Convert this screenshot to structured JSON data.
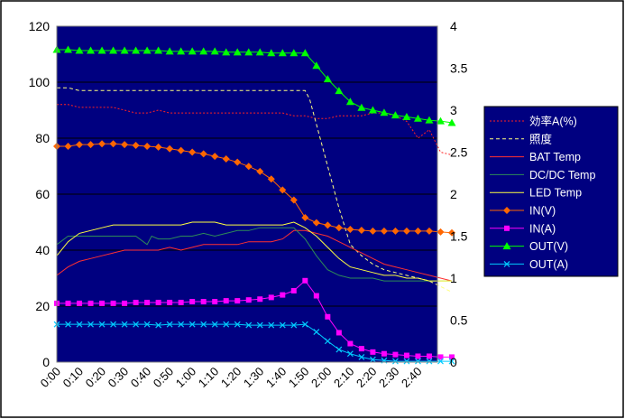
{
  "chart_data": {
    "type": "line",
    "title": "",
    "xlabel": "",
    "ylabel": "",
    "y2label": "",
    "ylim": [
      0,
      120
    ],
    "y2lim": [
      0,
      4
    ],
    "yticks": [
      "0",
      "20",
      "40",
      "60",
      "80",
      "100",
      "120"
    ],
    "y2ticks": [
      "0",
      "0.5",
      "1",
      "1.5",
      "2",
      "2.5",
      "3",
      "3.5",
      "4"
    ],
    "x_tick_labels": [
      "0:00",
      "0:10",
      "0:20",
      "0:30",
      "0:40",
      "0:50",
      "1:00",
      "1:10",
      "1:20",
      "1:30",
      "1:40",
      "1:50",
      "2:00",
      "2:10",
      "2:20",
      "2:30",
      "2:40"
    ],
    "x_minutes_range": [
      0,
      175
    ],
    "grid": "horizontal",
    "legend_position": "right",
    "colors": {
      "plot_background": "#000080",
      "gridline": "#000000"
    },
    "series": [
      {
        "name": "効率A(%)",
        "axis": "left",
        "style": "dotted",
        "color": "#FF2020",
        "marker": "none",
        "x": [
          0,
          5,
          10,
          15,
          20,
          25,
          30,
          35,
          40,
          45,
          50,
          55,
          60,
          65,
          70,
          75,
          80,
          85,
          90,
          95,
          100,
          105,
          110,
          115,
          120,
          125,
          130,
          135,
          140,
          145,
          150,
          155,
          160,
          165,
          170,
          175
        ],
        "values": [
          92,
          92,
          91,
          91,
          91,
          91,
          90,
          89,
          89,
          90,
          89,
          89,
          89,
          89,
          89,
          89,
          89,
          89,
          89,
          89,
          89,
          88,
          88,
          87,
          87,
          88,
          88,
          88,
          89,
          89,
          88,
          86,
          80,
          83,
          75,
          74
        ]
      },
      {
        "name": "照度",
        "axis": "left",
        "style": "dashed",
        "color": "#FFFF80",
        "marker": "none",
        "x": [
          0,
          5,
          10,
          15,
          20,
          25,
          30,
          35,
          40,
          45,
          50,
          55,
          60,
          65,
          70,
          75,
          80,
          85,
          90,
          95,
          100,
          105,
          110,
          112,
          115,
          120,
          125,
          130,
          135,
          140,
          145,
          150,
          155,
          160,
          165,
          170,
          175
        ],
        "values": [
          98,
          98,
          97,
          97,
          97,
          97,
          97,
          97,
          97,
          97,
          97,
          97,
          97,
          97,
          97,
          97,
          97,
          97,
          97,
          97,
          97,
          97,
          97,
          94,
          85,
          70,
          55,
          42,
          38,
          35,
          33,
          32,
          31,
          30,
          29,
          27,
          25
        ]
      },
      {
        "name": "BAT Temp",
        "axis": "left",
        "style": "solid",
        "color": "#FF3030",
        "marker": "none",
        "x": [
          0,
          5,
          10,
          15,
          20,
          25,
          30,
          35,
          40,
          45,
          50,
          55,
          60,
          65,
          70,
          75,
          80,
          85,
          90,
          95,
          100,
          105,
          110,
          115,
          120,
          125,
          130,
          135,
          140,
          145,
          150,
          155,
          160,
          165,
          170,
          175
        ],
        "values": [
          31,
          34,
          36,
          37,
          38,
          39,
          40,
          40,
          40,
          40,
          41,
          40,
          41,
          42,
          42,
          42,
          42,
          43,
          43,
          43,
          44,
          47,
          47,
          46,
          45,
          43,
          41,
          39,
          37,
          35,
          34,
          33,
          32,
          31,
          30,
          29
        ]
      },
      {
        "name": "DC/DC Temp",
        "axis": "left",
        "style": "solid",
        "color": "#2E8B57",
        "marker": "none",
        "x": [
          0,
          5,
          10,
          15,
          20,
          25,
          30,
          35,
          40,
          42,
          45,
          50,
          55,
          60,
          65,
          70,
          75,
          80,
          85,
          90,
          95,
          100,
          105,
          110,
          115,
          120,
          125,
          130,
          135,
          140,
          145,
          150,
          155,
          160,
          165,
          170,
          175
        ],
        "values": [
          42,
          45,
          45,
          45,
          45,
          45,
          45,
          45,
          42,
          45,
          44,
          44,
          45,
          45,
          46,
          45,
          46,
          47,
          47,
          48,
          48,
          48,
          48,
          44,
          38,
          33,
          31,
          30,
          30,
          30,
          29,
          29,
          29,
          29,
          29,
          29,
          29
        ]
      },
      {
        "name": "LED Temp",
        "axis": "left",
        "style": "solid",
        "color": "#FFFF40",
        "marker": "none",
        "x": [
          0,
          5,
          10,
          15,
          20,
          25,
          30,
          35,
          40,
          45,
          50,
          55,
          60,
          65,
          70,
          75,
          80,
          85,
          90,
          95,
          100,
          105,
          110,
          115,
          120,
          125,
          130,
          135,
          140,
          145,
          150,
          155,
          160,
          165,
          170,
          175
        ],
        "values": [
          38,
          43,
          46,
          47,
          48,
          49,
          49,
          49,
          49,
          49,
          49,
          49,
          50,
          50,
          50,
          49,
          49,
          49,
          49,
          49,
          49,
          50,
          48,
          45,
          41,
          37,
          34,
          33,
          32,
          31,
          31,
          30,
          30,
          29,
          29,
          29
        ]
      },
      {
        "name": "IN(V)",
        "axis": "right",
        "style": "solid",
        "color": "#FF6600",
        "marker": "diamond",
        "x": [
          0,
          5,
          10,
          15,
          20,
          25,
          30,
          35,
          40,
          45,
          50,
          55,
          60,
          65,
          70,
          75,
          80,
          85,
          90,
          95,
          100,
          105,
          110,
          115,
          120,
          125,
          130,
          135,
          140,
          145,
          150,
          155,
          160,
          165,
          170,
          175
        ],
        "values": [
          2.57,
          2.57,
          2.59,
          2.59,
          2.6,
          2.6,
          2.59,
          2.58,
          2.57,
          2.56,
          2.54,
          2.52,
          2.5,
          2.48,
          2.45,
          2.42,
          2.38,
          2.33,
          2.27,
          2.18,
          2.05,
          1.93,
          1.72,
          1.66,
          1.63,
          1.6,
          1.58,
          1.57,
          1.56,
          1.56,
          1.56,
          1.56,
          1.56,
          1.56,
          1.55,
          1.54
        ]
      },
      {
        "name": "IN(A)",
        "axis": "right",
        "style": "solid",
        "color": "#FF00FF",
        "marker": "square",
        "x": [
          0,
          5,
          10,
          15,
          20,
          25,
          30,
          35,
          40,
          45,
          50,
          55,
          60,
          65,
          70,
          75,
          80,
          85,
          90,
          95,
          100,
          105,
          110,
          115,
          120,
          125,
          130,
          135,
          140,
          145,
          150,
          155,
          160,
          165,
          170,
          175
        ],
        "values": [
          0.7,
          0.7,
          0.7,
          0.7,
          0.7,
          0.7,
          0.7,
          0.71,
          0.71,
          0.71,
          0.71,
          0.71,
          0.72,
          0.72,
          0.72,
          0.73,
          0.73,
          0.74,
          0.75,
          0.77,
          0.8,
          0.85,
          0.97,
          0.79,
          0.54,
          0.35,
          0.22,
          0.16,
          0.12,
          0.1,
          0.09,
          0.08,
          0.07,
          0.07,
          0.06,
          0.06
        ]
      },
      {
        "name": "OUT(V)",
        "axis": "right",
        "style": "solid",
        "color": "#00FF00",
        "marker": "triangle",
        "x": [
          0,
          5,
          10,
          15,
          20,
          25,
          30,
          35,
          40,
          45,
          50,
          55,
          60,
          65,
          70,
          75,
          80,
          85,
          90,
          95,
          100,
          105,
          110,
          115,
          120,
          125,
          130,
          135,
          140,
          145,
          150,
          155,
          160,
          165,
          170,
          175
        ],
        "values": [
          3.72,
          3.72,
          3.71,
          3.71,
          3.71,
          3.71,
          3.71,
          3.71,
          3.71,
          3.71,
          3.7,
          3.7,
          3.7,
          3.7,
          3.7,
          3.69,
          3.69,
          3.69,
          3.69,
          3.68,
          3.68,
          3.68,
          3.68,
          3.53,
          3.37,
          3.23,
          3.1,
          3.03,
          3,
          2.97,
          2.94,
          2.92,
          2.9,
          2.88,
          2.87,
          2.85
        ]
      },
      {
        "name": "OUT(A)",
        "axis": "right",
        "style": "solid",
        "color": "#00CCFF",
        "marker": "x",
        "x": [
          0,
          5,
          10,
          15,
          20,
          25,
          30,
          35,
          40,
          45,
          50,
          55,
          60,
          65,
          70,
          75,
          80,
          85,
          90,
          95,
          100,
          105,
          110,
          115,
          120,
          125,
          130,
          135,
          140,
          145,
          150,
          155,
          160,
          165,
          170,
          175
        ],
        "values": [
          0.45,
          0.45,
          0.45,
          0.45,
          0.45,
          0.45,
          0.45,
          0.45,
          0.45,
          0.44,
          0.45,
          0.45,
          0.45,
          0.45,
          0.45,
          0.45,
          0.45,
          0.44,
          0.44,
          0.44,
          0.44,
          0.44,
          0.45,
          0.36,
          0.25,
          0.15,
          0.1,
          0.06,
          0.03,
          0.02,
          0.01,
          0.01,
          0.01,
          0.01,
          0.01,
          0.01
        ]
      }
    ]
  }
}
